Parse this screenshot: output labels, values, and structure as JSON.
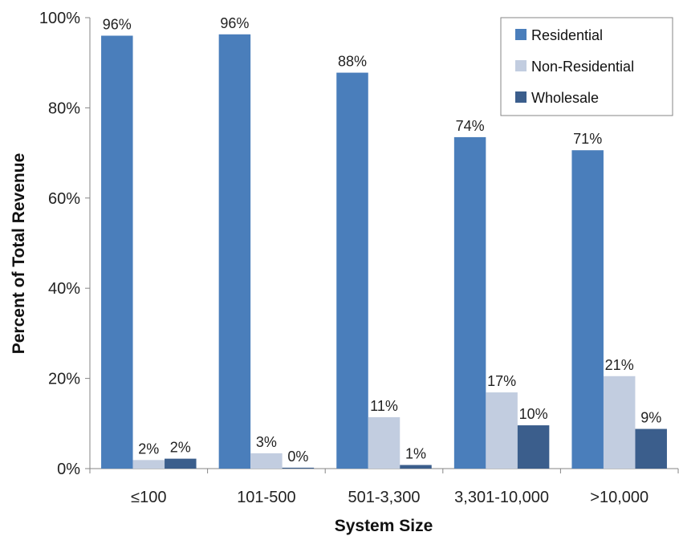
{
  "chart_data": {
    "type": "bar",
    "title": "",
    "xlabel": "System Size",
    "ylabel": "Percent of Total Revenue",
    "ylim": [
      0,
      100
    ],
    "yticks": [
      0,
      20,
      40,
      60,
      80,
      100
    ],
    "ytick_labels": [
      "0%",
      "20%",
      "40%",
      "60%",
      "80%",
      "100%"
    ],
    "categories": [
      "≤100",
      "101-500",
      "501-3,300",
      "3,301-10,000",
      ">10,000"
    ],
    "series": [
      {
        "name": "Residential",
        "color": "#4a7ebb",
        "values": [
          96,
          96.3,
          87.8,
          73.5,
          70.6
        ],
        "labels": [
          "96%",
          "96%",
          "88%",
          "74%",
          "71%"
        ]
      },
      {
        "name": "Non-Residential",
        "color": "#c2cde0",
        "values": [
          1.9,
          3.4,
          11.4,
          16.9,
          20.5
        ],
        "labels": [
          "2%",
          "3%",
          "11%",
          "17%",
          "21%"
        ]
      },
      {
        "name": "Wholesale",
        "color": "#3b5e8c",
        "values": [
          2.2,
          0.2,
          0.8,
          9.6,
          8.8
        ],
        "labels": [
          "2%",
          "0%",
          "1%",
          "10%",
          "9%"
        ]
      }
    ],
    "legend_position": "top-right",
    "grid": false
  }
}
